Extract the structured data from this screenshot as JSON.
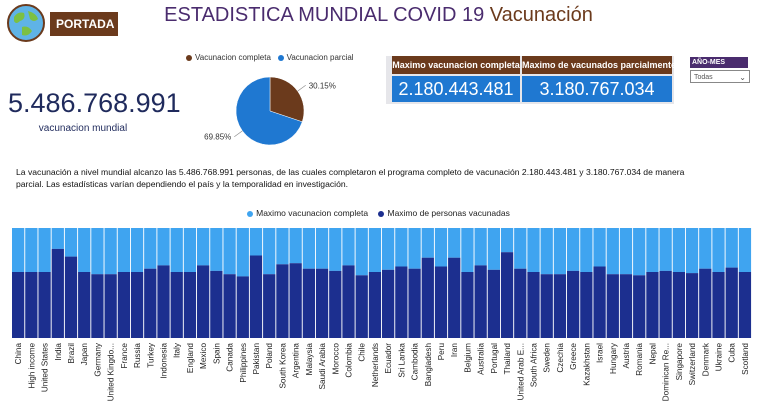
{
  "header": {
    "portada_label": "PORTADA",
    "title_main": "ESTADISTICA MUNDIAL COVID 19",
    "title_accent": "Vacunación"
  },
  "kpi": {
    "value": "5.486.768.991",
    "label": "vacunacion mundial"
  },
  "pie": {
    "legend": [
      {
        "label": "Vacunacion completa",
        "color": "#6b3a1c"
      },
      {
        "label": "Vacunacion parcial",
        "color": "#1f78d1"
      }
    ],
    "slices": [
      {
        "name": "Vacunacion completa",
        "percent": 30.15,
        "label": "30.15%",
        "color": "#6b3a1c"
      },
      {
        "name": "Vacunacion parcial",
        "percent": 69.85,
        "label": "69.85%",
        "color": "#1f78d1"
      }
    ]
  },
  "cards": {
    "complete_header": "Maximo vacunacion completa",
    "complete_value": "2.180.443.481",
    "partial_header": "Maximo de vacunados parcialmente",
    "partial_value": "3.180.767.034"
  },
  "slicer": {
    "label": "AÑO-MES",
    "value": "Todas"
  },
  "description": "La vacunación a nivel mundial alcanzo las 5.486.768.991 personas, de las cuales completaron el programa completo de vacunación 2.180.443.481 y 3.180.767.034 de manera parcial. Las estadísticas varían dependiendo el país y la temporalidad en investigación.",
  "chart_data": {
    "type": "bar",
    "stacked": "percent",
    "legend_position": "top-center",
    "series": [
      {
        "name": "Maximo vacunacion completa",
        "color": "#3fa4f0"
      },
      {
        "name": "Maximo de personas vacunadas",
        "color": "#1c2f8f"
      }
    ],
    "categories": [
      "China",
      "High income",
      "United States",
      "India",
      "Brazil",
      "Japan",
      "Germany",
      "United Kingdo...",
      "France",
      "Russia",
      "Turkey",
      "Indonesia",
      "Italy",
      "England",
      "Mexico",
      "Spain",
      "Canada",
      "Philippines",
      "Pakistan",
      "Poland",
      "South Korea",
      "Argentina",
      "Malaysia",
      "Saudi Arabia",
      "Morocco",
      "Colombia",
      "Chile",
      "Netherlands",
      "Ecuador",
      "Sri Lanka",
      "Cambodia",
      "Bangladesh",
      "Peru",
      "Iran",
      "Belgium",
      "Australia",
      "Portugal",
      "Thailand",
      "United Arab E...",
      "South Africa",
      "Sweden",
      "Czechia",
      "Greece",
      "Kazakhstan",
      "Israel",
      "Hungary",
      "Austria",
      "Romania",
      "Nepal",
      "Dominican Re...",
      "Singapore",
      "Switzerland",
      "Denmark",
      "Ukraine",
      "Cuba",
      "Scotland"
    ],
    "complete_share": [
      0.4,
      0.4,
      0.4,
      0.19,
      0.26,
      0.4,
      0.42,
      0.42,
      0.4,
      0.4,
      0.37,
      0.34,
      0.4,
      0.4,
      0.34,
      0.39,
      0.42,
      0.44,
      0.25,
      0.42,
      0.33,
      0.32,
      0.37,
      0.37,
      0.39,
      0.34,
      0.43,
      0.4,
      0.38,
      0.35,
      0.37,
      0.27,
      0.35,
      0.27,
      0.4,
      0.34,
      0.38,
      0.22,
      0.37,
      0.4,
      0.42,
      0.42,
      0.39,
      0.4,
      0.35,
      0.42,
      0.42,
      0.43,
      0.4,
      0.39,
      0.4,
      0.41,
      0.37,
      0.4,
      0.36,
      0.4
    ],
    "vaccinated_share": [
      0.6,
      0.6,
      0.6,
      0.81,
      0.74,
      0.6,
      0.58,
      0.58,
      0.6,
      0.6,
      0.63,
      0.66,
      0.6,
      0.6,
      0.66,
      0.61,
      0.58,
      0.56,
      0.75,
      0.58,
      0.67,
      0.68,
      0.63,
      0.63,
      0.61,
      0.66,
      0.57,
      0.6,
      0.62,
      0.65,
      0.63,
      0.73,
      0.65,
      0.73,
      0.6,
      0.66,
      0.62,
      0.78,
      0.63,
      0.6,
      0.58,
      0.58,
      0.61,
      0.6,
      0.65,
      0.58,
      0.58,
      0.57,
      0.6,
      0.61,
      0.6,
      0.59,
      0.63,
      0.6,
      0.64,
      0.6
    ]
  }
}
